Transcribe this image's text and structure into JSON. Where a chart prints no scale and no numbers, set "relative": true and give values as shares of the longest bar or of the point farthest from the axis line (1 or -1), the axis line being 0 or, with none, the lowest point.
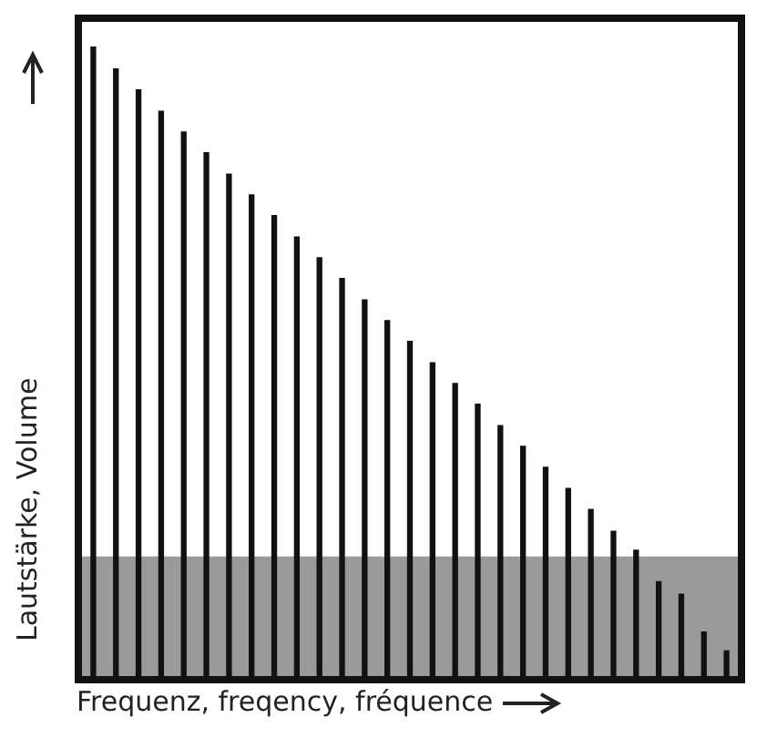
{
  "chart_data": {
    "type": "bar",
    "relative": true,
    "xlabel": "Frequenz, freqency, fréquence",
    "ylabel": "Lautstärke, Volume",
    "categories": [
      null,
      null,
      null,
      null,
      null,
      null,
      null,
      null,
      null,
      null,
      null,
      null,
      null,
      null,
      null,
      null,
      null,
      null,
      null,
      null,
      null,
      null,
      null,
      null,
      null,
      null,
      null,
      null,
      null
    ],
    "values": [
      1,
      0.965,
      0.932,
      0.898,
      0.865,
      0.832,
      0.798,
      0.765,
      0.732,
      0.698,
      0.665,
      0.632,
      0.598,
      0.565,
      0.532,
      0.498,
      0.465,
      0.432,
      0.398,
      0.365,
      0.332,
      0.298,
      0.265,
      0.23,
      0.2,
      0.15,
      0.13,
      0.07,
      0.04
    ],
    "color": "#111111",
    "bands": [
      {
        "axis": "y",
        "from": 0,
        "to": 0.19,
        "color": "#9a9a9a"
      }
    ],
    "grid": false,
    "legend": false
  }
}
